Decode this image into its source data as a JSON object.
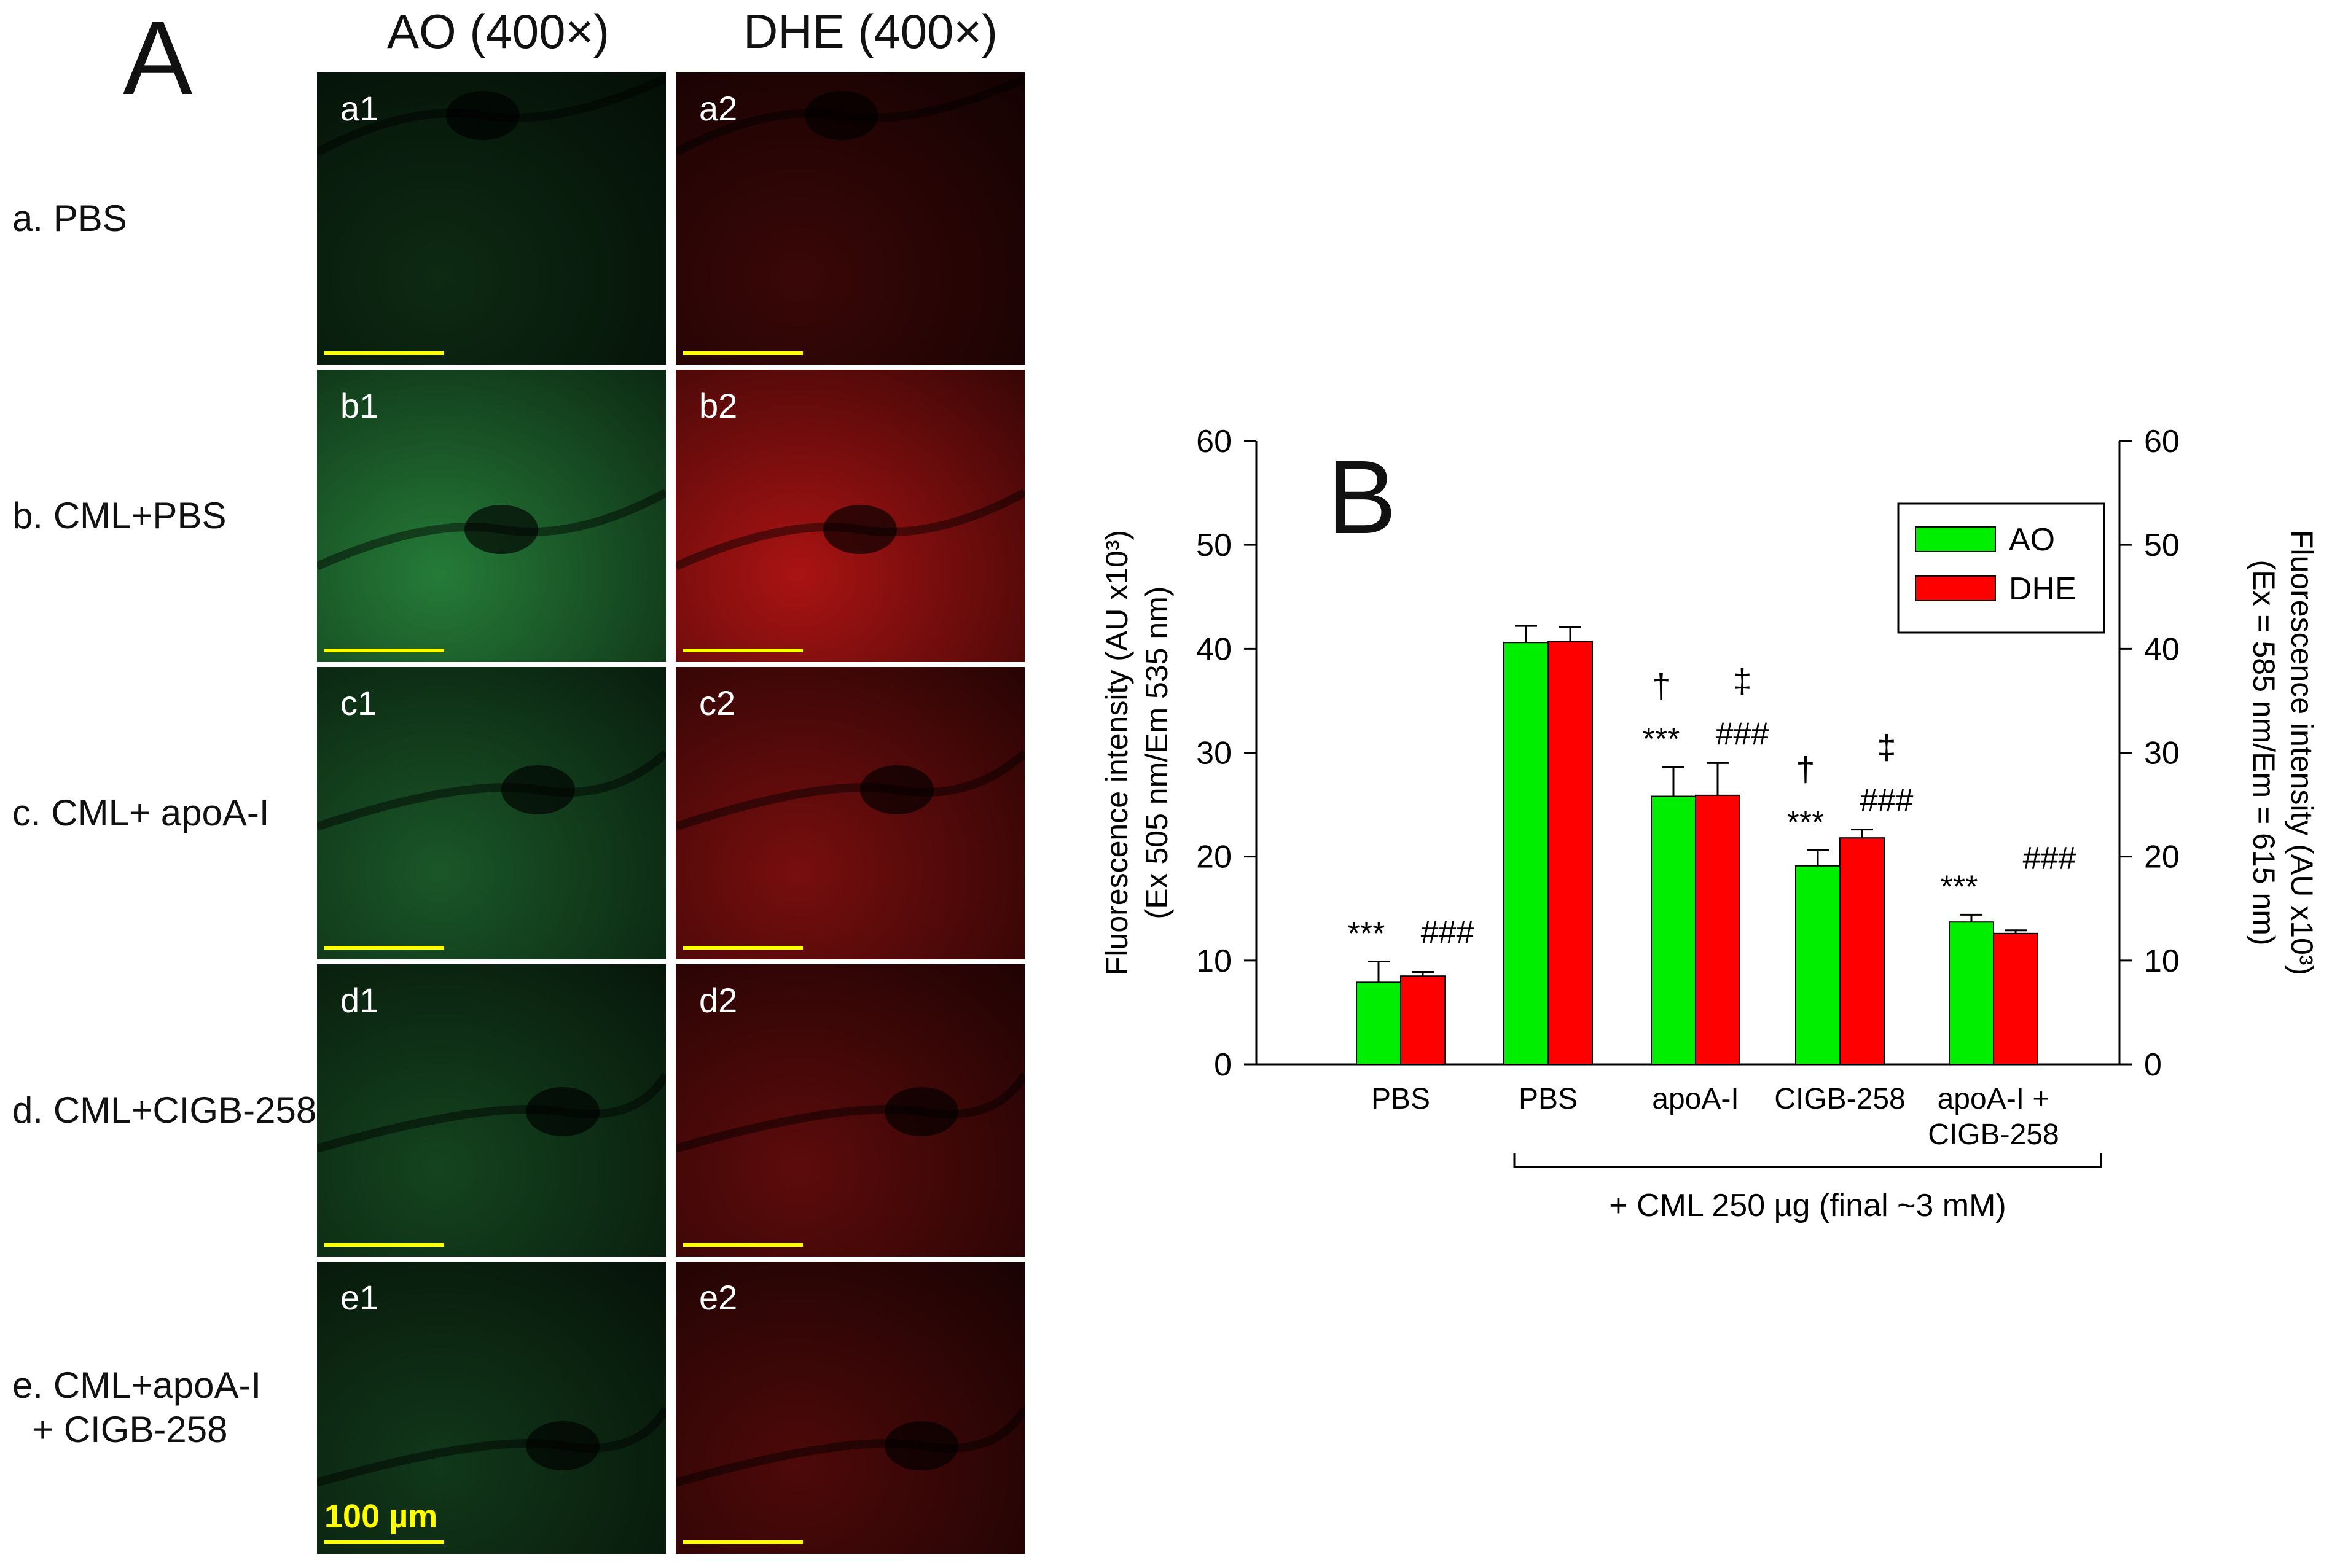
{
  "panel_a": {
    "letter": "A",
    "col_headers": [
      "AO (400×)",
      "DHE (400×)"
    ],
    "rows": [
      {
        "label": "a. PBS",
        "left": "a1",
        "right": "a2",
        "level": 0.15
      },
      {
        "label": "b. CML+PBS",
        "left": "b1",
        "right": "b2",
        "level": 1.0
      },
      {
        "label": "c. CML+ apoA-I",
        "left": "c1",
        "right": "c2",
        "level": 0.62
      },
      {
        "label": "d. CML+CIGB-258",
        "left": "d1",
        "right": "d2",
        "level": 0.42
      },
      {
        "label": "e. CML+apoA-I\n+ CIGB-258",
        "left": "e1",
        "right": "e2",
        "level": 0.3
      }
    ],
    "scale_label": "100 µm",
    "colors": {
      "ao": "#2e9a46",
      "dhe": "#d41818"
    }
  },
  "panel_b": {
    "letter": "B",
    "bracket_label": "+ CML 250 µg (final ~3 mM)"
  },
  "chart_data": {
    "type": "bar",
    "categories": [
      "PBS",
      "PBS",
      "apoA-I",
      "CIGB-258",
      "apoA-I +\nCIGB-258"
    ],
    "series": [
      {
        "name": "AO",
        "color": "#00ee00",
        "values": [
          7.9,
          40.6,
          25.8,
          19.1,
          13.7
        ],
        "errors": [
          2.0,
          1.6,
          2.8,
          1.5,
          0.7
        ]
      },
      {
        "name": "DHE",
        "color": "#ff0000",
        "values": [
          8.5,
          40.7,
          25.9,
          21.8,
          12.6
        ],
        "errors": [
          0.4,
          1.4,
          3.1,
          0.8,
          0.3
        ]
      }
    ],
    "ylabel_left": [
      "Fluorescence intensity (AU x10³)",
      "(Ex 505 nm/Em 535 nm)"
    ],
    "ylabel_right": [
      "Fluorescence intensity (AU x10³)",
      "(Ex = 585 nm/Em = 615 nm)"
    ],
    "ylim": [
      0,
      60
    ],
    "yticks": [
      "0",
      "10",
      "20",
      "30",
      "40",
      "50",
      "60"
    ],
    "legend_position": "top-right",
    "annotations": [
      {
        "text": "***",
        "group": 0,
        "series": 0
      },
      {
        "text": "###",
        "group": 0,
        "series": 1
      },
      {
        "text": "***",
        "group": 2,
        "series": 0
      },
      {
        "text": "†",
        "group": 2,
        "series": 0
      },
      {
        "text": "###",
        "group": 2,
        "series": 1
      },
      {
        "text": "‡",
        "group": 2,
        "series": 1
      },
      {
        "text": "***",
        "group": 3,
        "series": 0
      },
      {
        "text": "†",
        "group": 3,
        "series": 0
      },
      {
        "text": "###",
        "group": 3,
        "series": 1
      },
      {
        "text": "‡",
        "group": 3,
        "series": 1
      },
      {
        "text": "***",
        "group": 4,
        "series": 0
      },
      {
        "text": "###",
        "group": 4,
        "series": 1
      }
    ]
  }
}
